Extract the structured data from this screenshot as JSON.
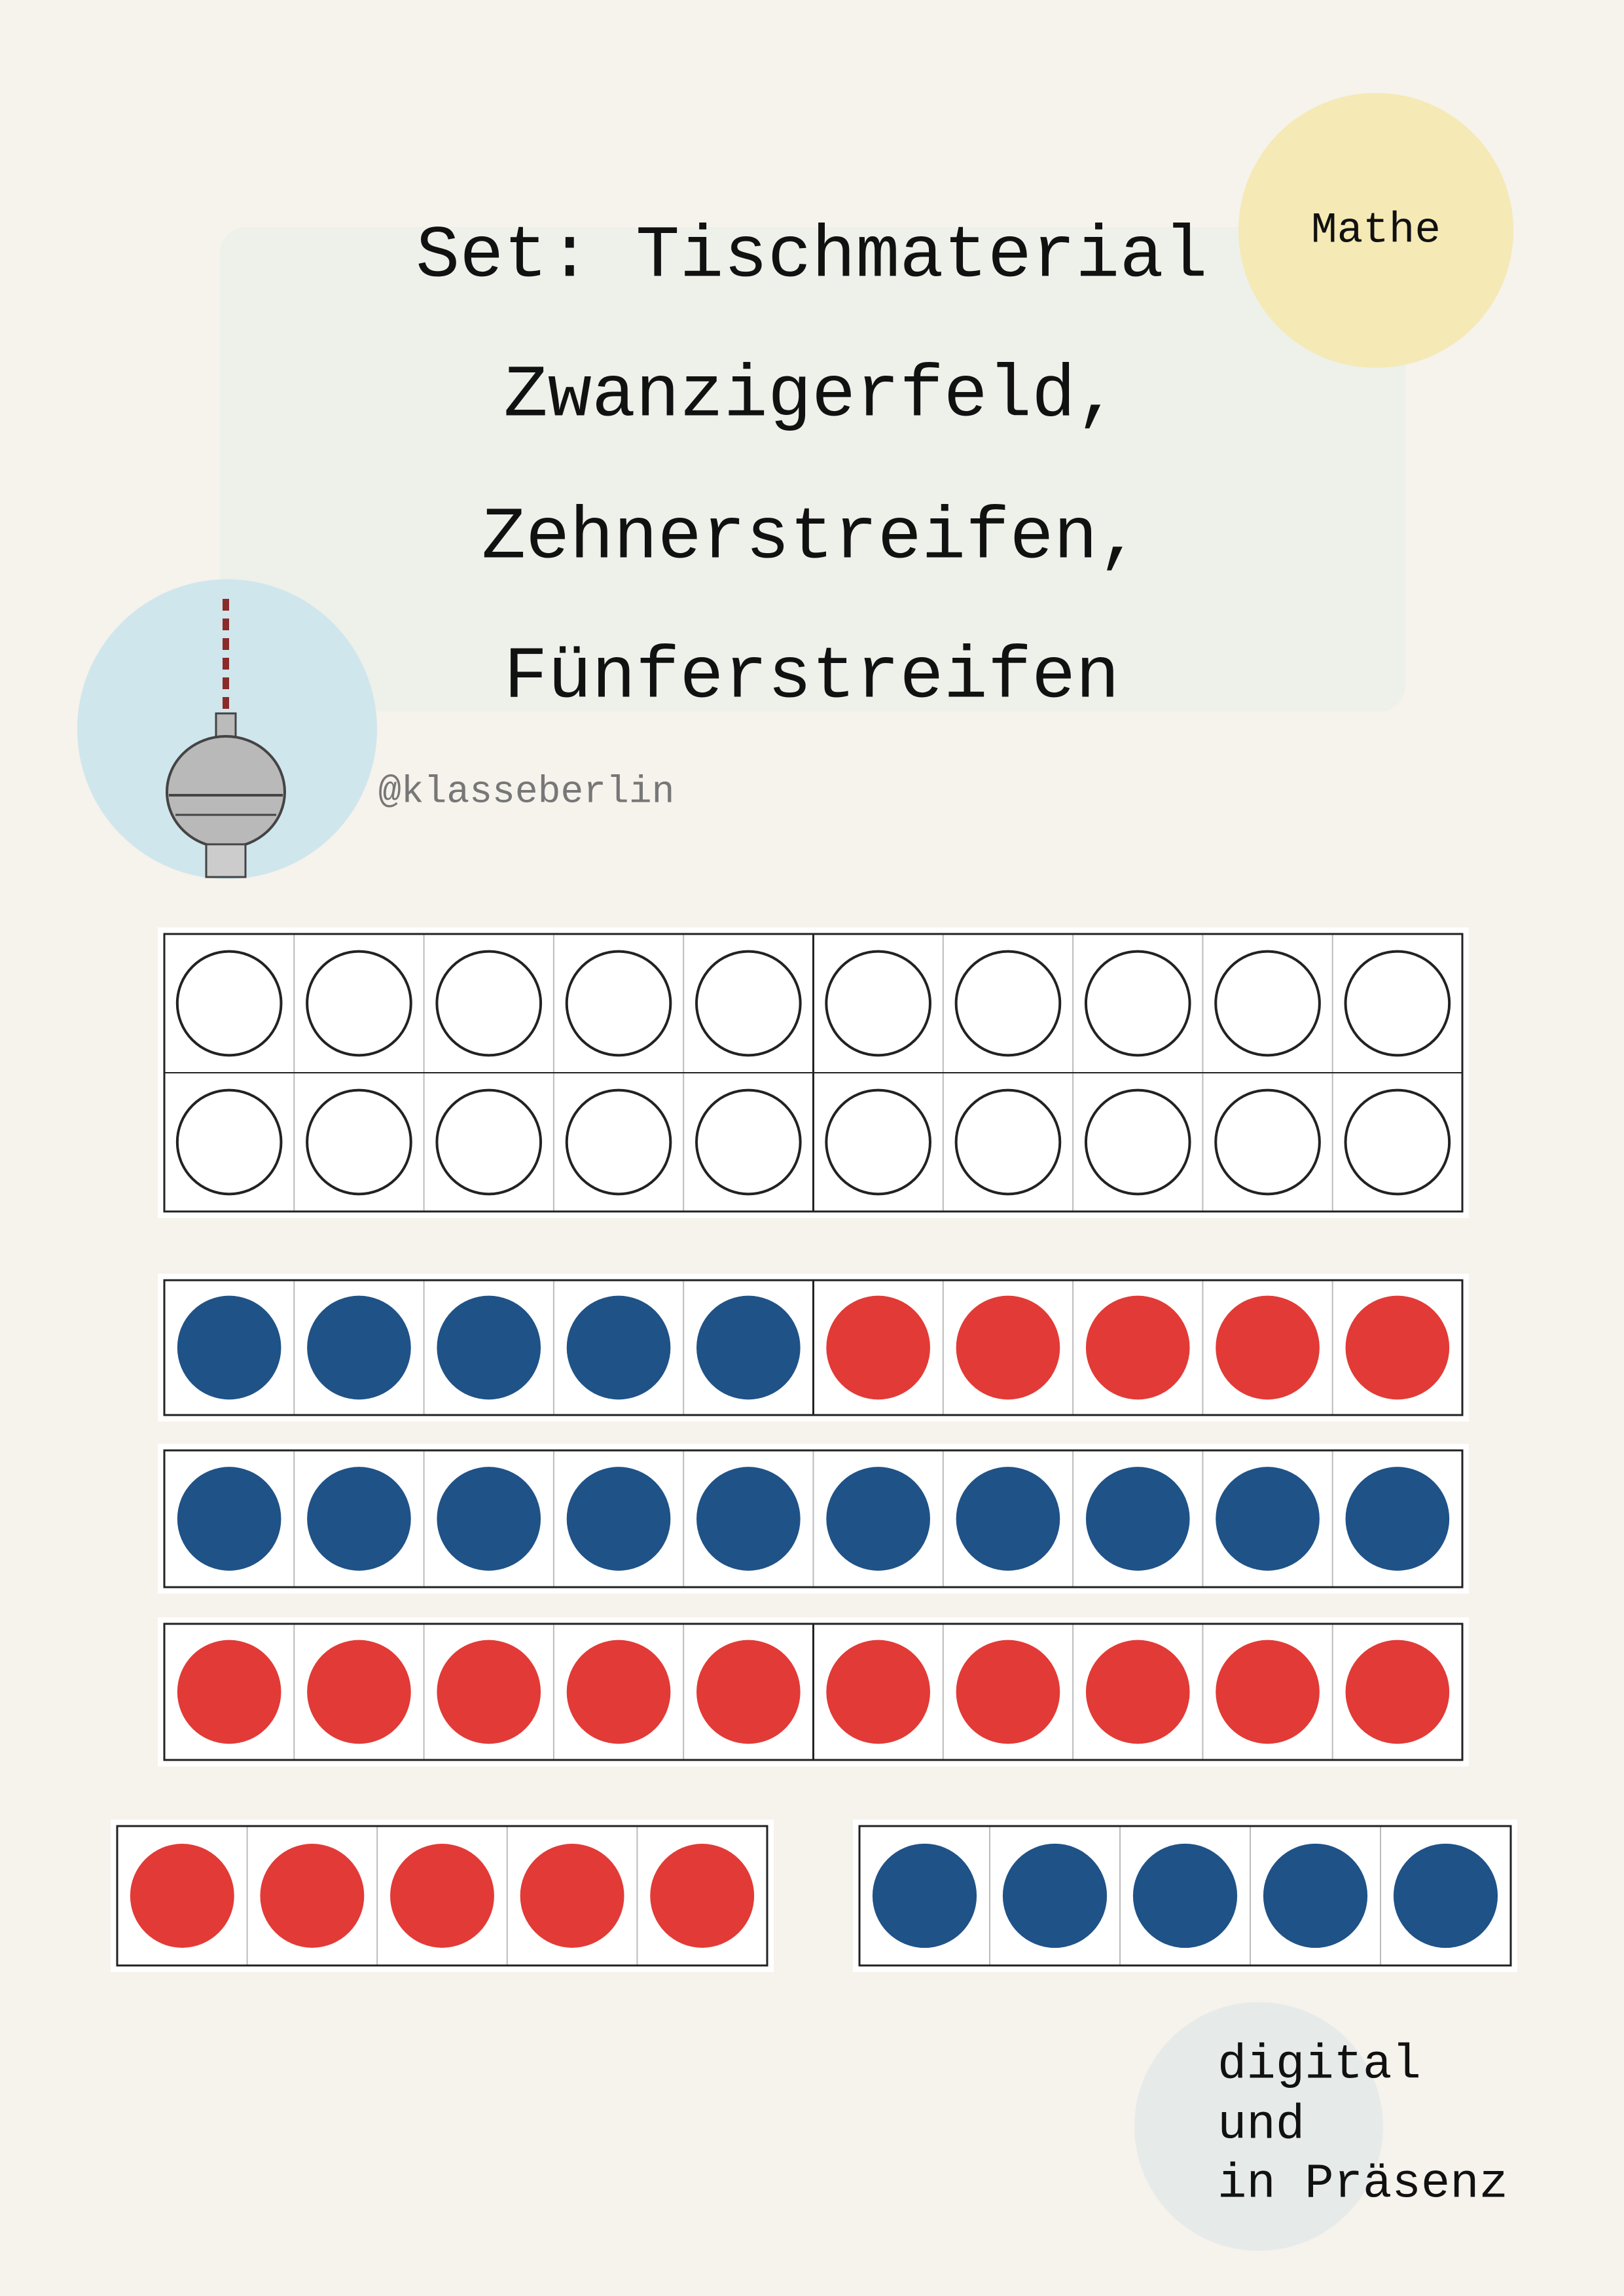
{
  "header": {
    "subject": "Mathe",
    "title": [
      "Set: Tischmaterial",
      "Zwanzigerfeld,",
      "Zehnerstreifen,",
      "Fünferstreifen"
    ],
    "handle": "@klasseberlin"
  },
  "footer": {
    "lines": [
      "digital",
      "und",
      "in Präsenz"
    ]
  }
}
